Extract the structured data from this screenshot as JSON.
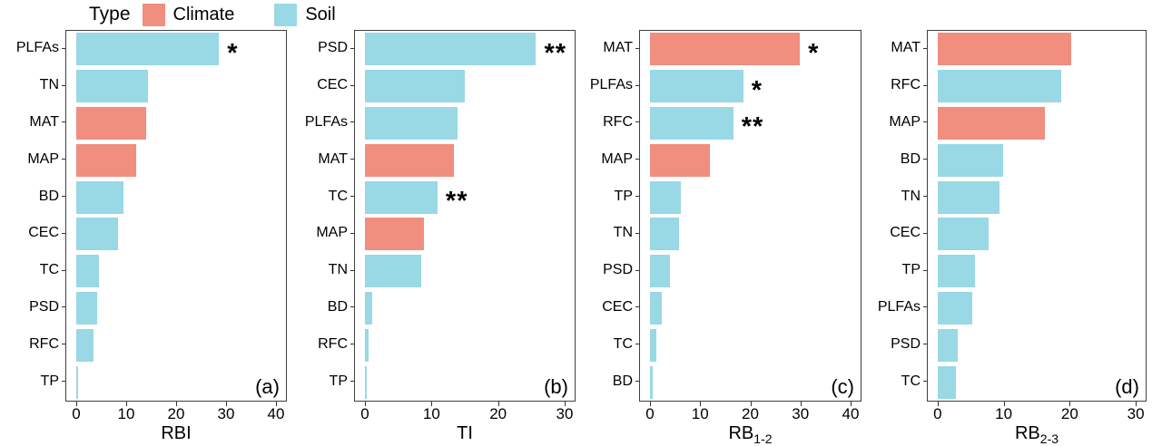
{
  "legend": {
    "title": "Type",
    "items": [
      {
        "label": "Climate",
        "color": "#F08E80"
      },
      {
        "label": "Soil",
        "color": "#99D8E5"
      }
    ]
  },
  "colors": {
    "climate": "#F08E80",
    "soil": "#99D8E5"
  },
  "chart_data": [
    {
      "type": "bar",
      "orientation": "horizontal",
      "panel_label": "(a)",
      "xlabel": "RBI",
      "xlabel_sub": "",
      "xlim": [
        0,
        40
      ],
      "xticks": [
        0,
        10,
        20,
        30,
        40
      ],
      "categories": [
        "PLFAs",
        "TN",
        "MAT",
        "MAP",
        "BD",
        "CEC",
        "TC",
        "PSD",
        "RFC",
        "TP"
      ],
      "values": [
        28.6,
        14.3,
        14.0,
        12.0,
        9.4,
        8.4,
        4.5,
        4.1,
        3.4,
        0.3
      ],
      "types": [
        "soil",
        "soil",
        "climate",
        "climate",
        "soil",
        "soil",
        "soil",
        "soil",
        "soil",
        "soil"
      ],
      "sig": [
        "*",
        "",
        "",
        "",
        "",
        "",
        "",
        "",
        "",
        ""
      ]
    },
    {
      "type": "bar",
      "orientation": "horizontal",
      "panel_label": "(b)",
      "xlabel": "TI",
      "xlabel_sub": "",
      "xlim": [
        0,
        30
      ],
      "xticks": [
        0,
        10,
        20,
        30
      ],
      "categories": [
        "PSD",
        "CEC",
        "PLFAs",
        "MAT",
        "TC",
        "MAP",
        "TN",
        "BD",
        "RFC",
        "TP"
      ],
      "values": [
        25.7,
        15.0,
        13.9,
        13.4,
        10.9,
        8.9,
        8.5,
        1.1,
        0.6,
        0.3
      ],
      "types": [
        "soil",
        "soil",
        "soil",
        "climate",
        "soil",
        "climate",
        "soil",
        "soil",
        "soil",
        "soil"
      ],
      "sig": [
        "**",
        "",
        "",
        "",
        "**",
        "",
        "",
        "",
        "",
        ""
      ]
    },
    {
      "type": "bar",
      "orientation": "horizontal",
      "panel_label": "(c)",
      "xlabel": "RB",
      "xlabel_sub": "1-2",
      "xlim": [
        0,
        40
      ],
      "xticks": [
        0,
        10,
        20,
        30,
        40
      ],
      "categories": [
        "MAT",
        "PLFAs",
        "RFC",
        "MAP",
        "TP",
        "TN",
        "PSD",
        "CEC",
        "TC",
        "BD"
      ],
      "values": [
        29.9,
        18.6,
        16.6,
        12.0,
        6.1,
        5.8,
        3.9,
        2.4,
        1.3,
        0.6
      ],
      "types": [
        "climate",
        "soil",
        "soil",
        "climate",
        "soil",
        "soil",
        "soil",
        "soil",
        "soil",
        "soil"
      ],
      "sig": [
        "*",
        "*",
        "**",
        "",
        "",
        "",
        "",
        "",
        "",
        ""
      ]
    },
    {
      "type": "bar",
      "orientation": "horizontal",
      "panel_label": "(d)",
      "xlabel": "RB",
      "xlabel_sub": "2-3",
      "xlim": [
        0,
        30
      ],
      "xticks": [
        0,
        10,
        20,
        30
      ],
      "categories": [
        "MAT",
        "RFC",
        "MAP",
        "BD",
        "TN",
        "CEC",
        "TP",
        "PLFAs",
        "PSD",
        "TC"
      ],
      "values": [
        20.2,
        18.7,
        16.2,
        9.9,
        9.4,
        7.7,
        5.6,
        5.2,
        3.0,
        2.7
      ],
      "types": [
        "climate",
        "soil",
        "climate",
        "soil",
        "soil",
        "soil",
        "soil",
        "soil",
        "soil",
        "soil"
      ],
      "sig": [
        "",
        "",
        "",
        "",
        "",
        "",
        "",
        "",
        "",
        ""
      ]
    }
  ]
}
